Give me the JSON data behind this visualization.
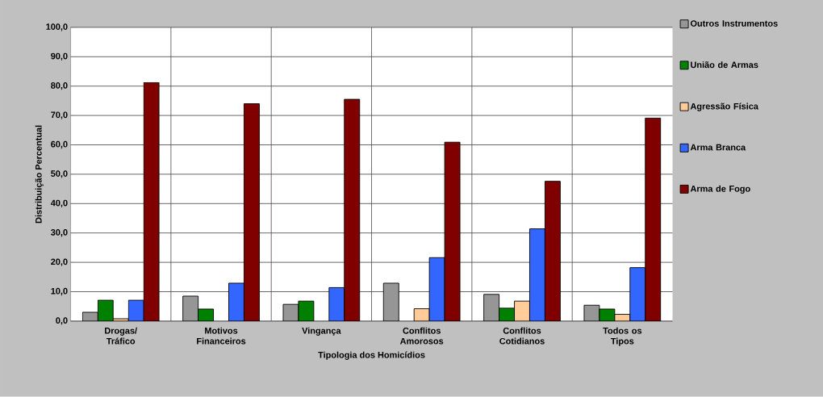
{
  "chart_data": {
    "type": "bar",
    "xlabel": "Tipologia dos Homicídios",
    "ylabel": "Distribuição Percentual",
    "categories": [
      "Drogas/ Tráfico",
      "Motivos Financeiros",
      "Vingança",
      "Conflitos Amorosos",
      "Conflitos Cotidianos",
      "Todos os Tipos"
    ],
    "series": [
      {
        "name": "Outros Instrumentos",
        "color": "#969696",
        "values": [
          3.0,
          8.5,
          5.7,
          12.9,
          9.1,
          5.4
        ]
      },
      {
        "name": "União de Armas",
        "color": "#008000",
        "values": [
          7.1,
          4.1,
          6.8,
          null,
          4.4,
          4.1
        ]
      },
      {
        "name": "Agressão Física",
        "color": "#ffcc99",
        "values": [
          0.8,
          null,
          null,
          4.2,
          6.8,
          2.3
        ]
      },
      {
        "name": "Arma Branca",
        "color": "#3366ff",
        "values": [
          7.1,
          12.9,
          11.4,
          21.6,
          31.4,
          18.2
        ]
      },
      {
        "name": "Arma de Fogo",
        "color": "#800000",
        "values": [
          81.2,
          74.0,
          75.5,
          60.9,
          47.6,
          69.1
        ]
      }
    ],
    "ylim": [
      0,
      100
    ],
    "yticks": [
      {
        "value": 0,
        "label": "0,0"
      },
      {
        "value": 10,
        "label": "10,0"
      },
      {
        "value": 20,
        "label": "20,0"
      },
      {
        "value": 30,
        "label": "30,0"
      },
      {
        "value": 40,
        "label": "40,0"
      },
      {
        "value": 50,
        "label": "50,0"
      },
      {
        "value": 60,
        "label": "60,0"
      },
      {
        "value": 70,
        "label": "70,0"
      },
      {
        "value": 80,
        "label": "80,0"
      },
      {
        "value": 90,
        "label": "90,0"
      },
      {
        "value": 100,
        "label": "100,0"
      }
    ],
    "grid": true,
    "legend": "right"
  }
}
